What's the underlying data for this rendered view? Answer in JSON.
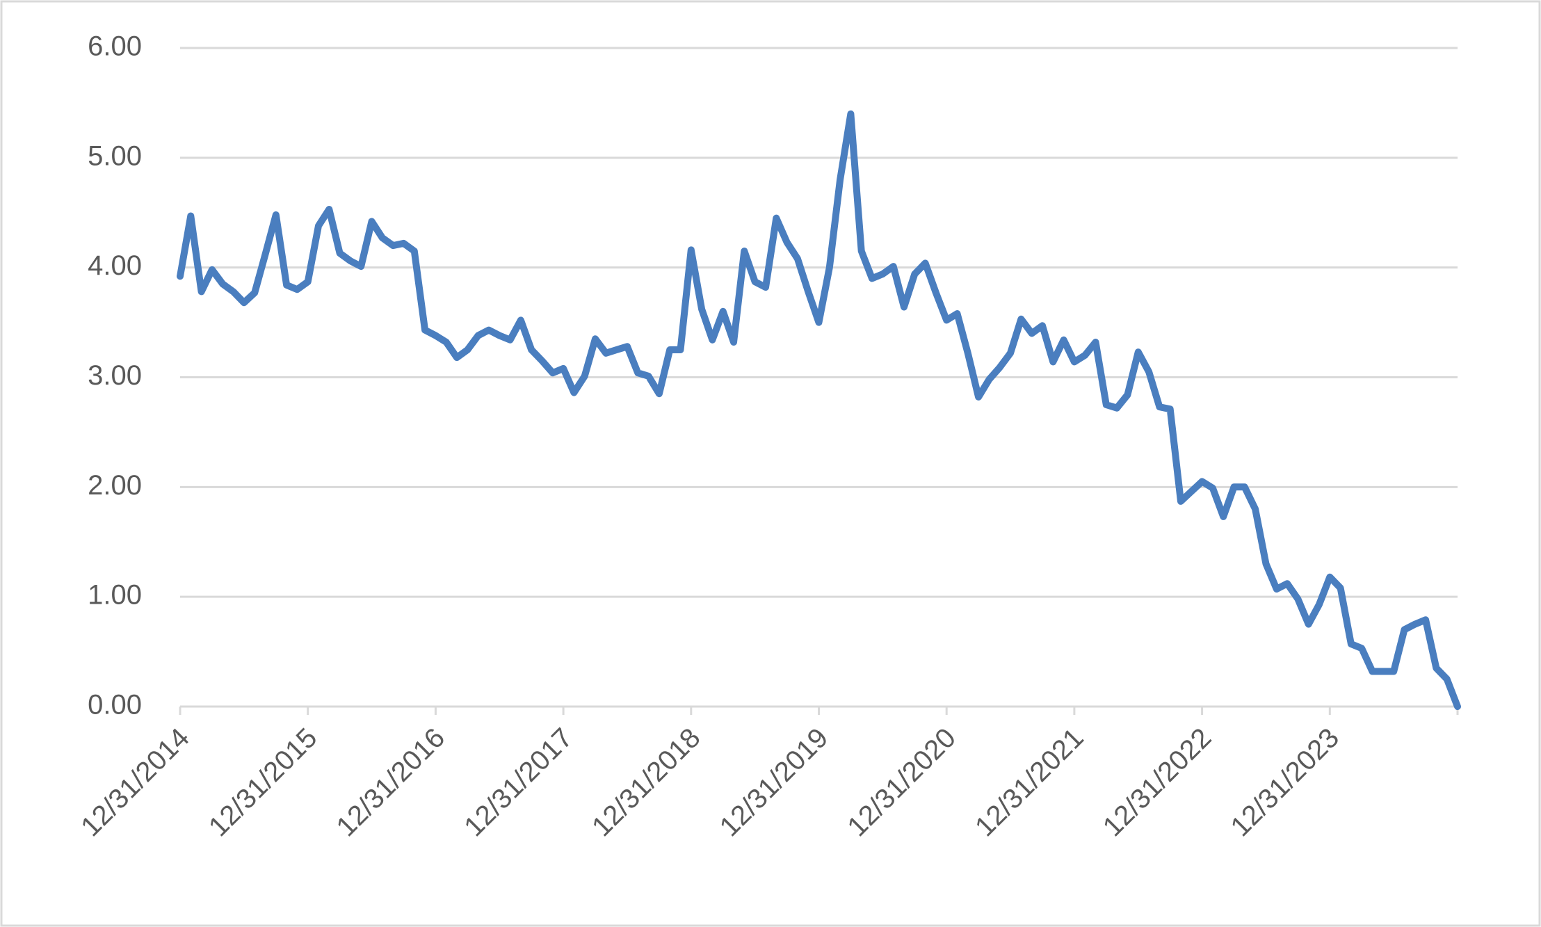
{
  "chart_data": {
    "type": "line",
    "categories": [
      "12/31/2014",
      null,
      null,
      null,
      null,
      null,
      null,
      null,
      null,
      null,
      null,
      null,
      "12/31/2015",
      null,
      null,
      null,
      null,
      null,
      null,
      null,
      null,
      null,
      null,
      null,
      "12/31/2016",
      null,
      null,
      null,
      null,
      null,
      null,
      null,
      null,
      null,
      null,
      null,
      "12/31/2017",
      null,
      null,
      null,
      null,
      null,
      null,
      null,
      null,
      null,
      null,
      null,
      "12/31/2018",
      null,
      null,
      null,
      null,
      null,
      null,
      null,
      null,
      null,
      null,
      null,
      "12/31/2019",
      null,
      null,
      null,
      null,
      null,
      null,
      null,
      null,
      null,
      null,
      null,
      "12/31/2020",
      null,
      null,
      null,
      null,
      null,
      null,
      null,
      null,
      null,
      null,
      null,
      "12/31/2021",
      null,
      null,
      null,
      null,
      null,
      null,
      null,
      null,
      null,
      null,
      null,
      "12/31/2022",
      null,
      null,
      null,
      null,
      null,
      null,
      null,
      null,
      null,
      null,
      null,
      "12/31/2023",
      null,
      null,
      null,
      null,
      null,
      null,
      null,
      null,
      null,
      null,
      null,
      null
    ],
    "values": [
      3.92,
      4.47,
      3.78,
      3.98,
      3.85,
      3.78,
      3.68,
      3.77,
      4.12,
      4.48,
      3.84,
      3.8,
      3.87,
      4.38,
      4.53,
      4.13,
      4.06,
      4.01,
      4.42,
      4.27,
      4.2,
      4.22,
      4.15,
      3.43,
      3.38,
      3.32,
      3.18,
      3.25,
      3.38,
      3.43,
      3.38,
      3.34,
      3.52,
      3.25,
      3.15,
      3.04,
      3.08,
      2.86,
      3.01,
      3.35,
      3.22,
      3.25,
      3.28,
      3.04,
      3.01,
      2.85,
      3.25,
      3.25,
      4.16,
      3.62,
      3.34,
      3.6,
      3.32,
      4.15,
      3.87,
      3.82,
      4.45,
      4.23,
      4.08,
      3.78,
      3.5,
      4.0,
      4.8,
      5.4,
      4.15,
      3.9,
      3.94,
      4.01,
      3.64,
      3.94,
      4.04,
      3.77,
      3.52,
      3.58,
      3.22,
      2.82,
      2.98,
      3.09,
      3.22,
      3.53,
      3.4,
      3.47,
      3.14,
      3.34,
      3.14,
      3.2,
      3.32,
      2.75,
      2.72,
      2.84,
      3.23,
      3.05,
      2.73,
      2.71,
      1.87,
      1.96,
      2.05,
      1.99,
      1.73,
      2.0,
      2.0,
      1.8,
      1.3,
      1.07,
      1.12,
      0.98,
      0.75,
      0.93,
      1.18,
      1.08,
      0.57,
      0.53,
      0.32,
      0.32,
      0.32,
      0.7,
      0.75,
      0.79,
      0.35,
      0.25,
      0.0
    ],
    "color": "#4a7ebf",
    "ylim": [
      0,
      6
    ],
    "yticks": [
      {
        "value": 0,
        "label": "0.00"
      },
      {
        "value": 1,
        "label": "1.00"
      },
      {
        "value": 2,
        "label": "2.00"
      },
      {
        "value": 3,
        "label": "3.00"
      },
      {
        "value": 4,
        "label": "4.00"
      },
      {
        "value": 5,
        "label": "5.00"
      },
      {
        "value": 6,
        "label": "6.00"
      }
    ],
    "grid": true
  }
}
